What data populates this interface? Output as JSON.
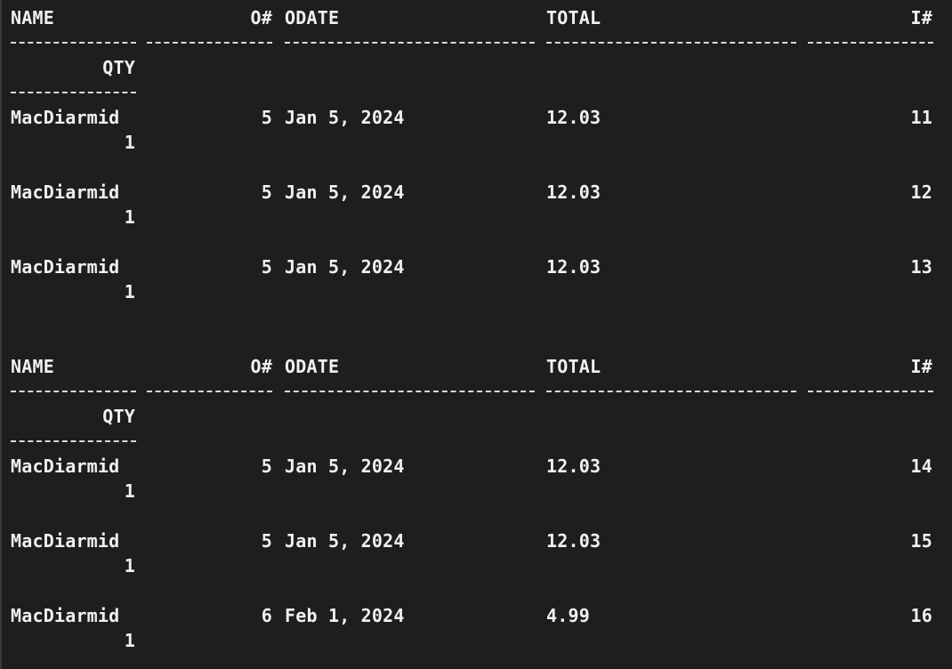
{
  "terminal": {
    "headers": {
      "name": "NAME",
      "order_no": "O#",
      "odate": "ODATE",
      "total": "TOTAL",
      "item_no": "I#",
      "qty": "QTY"
    },
    "block1": {
      "rows": [
        {
          "name": "MacDiarmid",
          "order_no": "5",
          "odate": "Jan 5, 2024",
          "total": "12.03",
          "item_no": "11",
          "qty": "1"
        },
        {
          "name": "MacDiarmid",
          "order_no": "5",
          "odate": "Jan 5, 2024",
          "total": "12.03",
          "item_no": "12",
          "qty": "1"
        },
        {
          "name": "MacDiarmid",
          "order_no": "5",
          "odate": "Jan 5, 2024",
          "total": "12.03",
          "item_no": "13",
          "qty": "1"
        }
      ]
    },
    "block2": {
      "rows": [
        {
          "name": "MacDiarmid",
          "order_no": "5",
          "odate": "Jan 5, 2024",
          "total": "12.03",
          "item_no": "14",
          "qty": "1"
        },
        {
          "name": "MacDiarmid",
          "order_no": "5",
          "odate": "Jan 5, 2024",
          "total": "12.03",
          "item_no": "15",
          "qty": "1"
        },
        {
          "name": "MacDiarmid",
          "order_no": "6",
          "odate": "Feb 1, 2024",
          "total": "4.99",
          "item_no": "16",
          "qty": "1"
        }
      ]
    }
  }
}
